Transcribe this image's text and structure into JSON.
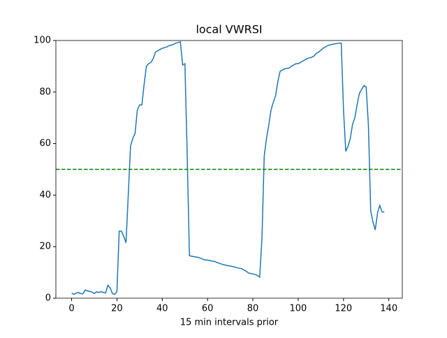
{
  "chart_data": {
    "type": "line",
    "title": "local VWRSI",
    "x_label": "15 min intervals prior",
    "x": [
      0,
      1,
      2,
      3,
      4,
      5,
      6,
      7,
      8,
      9,
      10,
      11,
      12,
      13,
      14,
      15,
      16,
      17,
      18,
      19,
      20,
      21,
      22,
      23,
      24,
      25,
      26,
      27,
      28,
      29,
      30,
      31,
      32,
      33,
      34,
      35,
      36,
      37,
      38,
      39,
      40,
      41,
      42,
      43,
      44,
      45,
      46,
      47,
      48,
      49,
      50,
      51,
      52,
      53,
      54,
      55,
      56,
      57,
      58,
      59,
      60,
      61,
      62,
      63,
      64,
      65,
      66,
      67,
      68,
      69,
      70,
      71,
      72,
      73,
      74,
      75,
      76,
      77,
      78,
      79,
      80,
      81,
      82,
      83,
      84,
      85,
      86,
      87,
      88,
      89,
      90,
      91,
      92,
      93,
      94,
      95,
      96,
      97,
      98,
      99,
      100,
      101,
      102,
      103,
      104,
      105,
      106,
      107,
      108,
      109,
      110,
      111,
      112,
      113,
      114,
      115,
      116,
      117,
      118,
      119,
      120,
      121,
      122,
      123,
      124,
      125,
      126,
      127,
      128,
      129,
      130,
      131,
      132,
      133,
      134,
      135,
      136,
      137,
      138
    ],
    "series": [
      {
        "name": "VWRSI",
        "color": "#1f77b4",
        "values": [
          2,
          1.5,
          2,
          2.2,
          1.8,
          1.7,
          3.2,
          2.8,
          2.6,
          2.4,
          1.8,
          2.5,
          2.2,
          2.6,
          2.2,
          2,
          5,
          4,
          1.8,
          1.5,
          2.5,
          26,
          26,
          24,
          21.5,
          40,
          59,
          62,
          64,
          73,
          75,
          75,
          83,
          90,
          91,
          91.5,
          93,
          95.5,
          96,
          96.5,
          97,
          97.2,
          97.5,
          98,
          98.2,
          98.5,
          99,
          99.2,
          99.5,
          90.5,
          91,
          56,
          16.5,
          16.3,
          16.1,
          16,
          15.8,
          15.5,
          15.1,
          14.8,
          14.8,
          14.6,
          14.4,
          14.3,
          13.9,
          13.6,
          13.3,
          13,
          12.8,
          12.6,
          12.5,
          12.3,
          12.1,
          11.8,
          11.6,
          11.5,
          11,
          10.5,
          9.8,
          9.6,
          9.4,
          9.2,
          8.8,
          8.2,
          23,
          55,
          62,
          67,
          73,
          76,
          78.5,
          84,
          88,
          88.5,
          89,
          89.2,
          89.3,
          90,
          90.5,
          91,
          91,
          91.5,
          92,
          92.5,
          93,
          93.3,
          93.5,
          94,
          95,
          95.5,
          96.2,
          97,
          97.5,
          98,
          98.3,
          98.5,
          98.7,
          98.8,
          99,
          99,
          73,
          57,
          59,
          62,
          67.5,
          70,
          75,
          79.5,
          81,
          82.5,
          82,
          67,
          34,
          29.5,
          26.5,
          33,
          36,
          33.5,
          33.5
        ]
      }
    ],
    "hline": {
      "value": 50,
      "color": "green",
      "style": "dashed"
    },
    "xlim": [
      -6.95,
      145.95
    ],
    "ylim": [
      0,
      100
    ],
    "xticks": [
      0,
      20,
      40,
      60,
      80,
      100,
      120,
      140
    ],
    "yticks": [
      0,
      20,
      40,
      60,
      80,
      100
    ]
  }
}
